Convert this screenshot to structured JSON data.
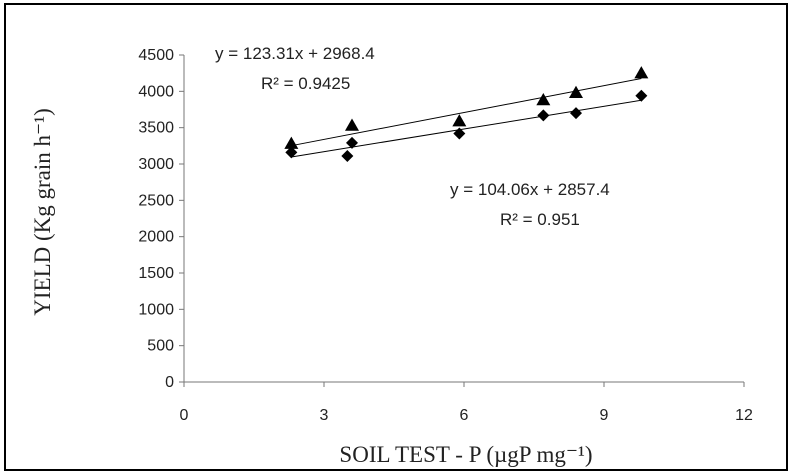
{
  "chart_data": {
    "type": "scatter",
    "title": "",
    "xlabel": "SOIL TEST - P (µgP mg⁻¹)",
    "ylabel": "YIELD (Kg grain h⁻¹)",
    "xlim": [
      0,
      12
    ],
    "ylim": [
      0,
      4500
    ],
    "x_ticks": [
      0,
      3,
      6,
      9,
      12
    ],
    "y_ticks": [
      0,
      500,
      1000,
      1500,
      2000,
      2500,
      3000,
      3500,
      4000,
      4500
    ],
    "grid": false,
    "legend": "none",
    "series": [
      {
        "marker": "triangle",
        "color": "#000000",
        "x": [
          2.3,
          3.6,
          5.9,
          7.7,
          8.4,
          9.8
        ],
        "y": [
          3280,
          3530,
          3590,
          3880,
          3980,
          4250
        ],
        "trendline": {
          "slope": 123.31,
          "intercept": 2968.4
        },
        "equation": "y = 123.31x + 2968.4",
        "r2": "R² = 0.9425"
      },
      {
        "marker": "diamond",
        "color": "#000000",
        "x": [
          2.3,
          3.5,
          3.6,
          5.9,
          7.7,
          8.4,
          9.8
        ],
        "y": [
          3160,
          3110,
          3290,
          3420,
          3670,
          3700,
          3940
        ],
        "trendline": {
          "slope": 104.06,
          "intercept": 2857.4
        },
        "equation": "y = 104.06x + 2857.4",
        "r2": "R² = 0.951"
      }
    ]
  }
}
